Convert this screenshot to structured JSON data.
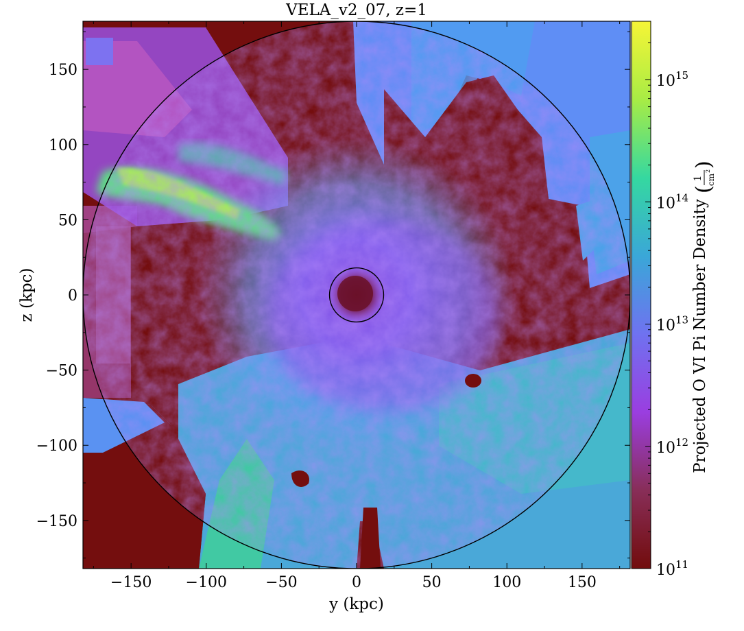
{
  "chart_data": {
    "type": "heatmap",
    "title": "VELA_v2_07, z=1",
    "xlabel": "y  (kpc)",
    "ylabel": "z  (kpc)",
    "xlim": [
      -182,
      182
    ],
    "ylim": [
      -182,
      182
    ],
    "xticks": [
      -150,
      -100,
      -50,
      0,
      50,
      100,
      150
    ],
    "yticks": [
      150,
      100,
      50,
      0,
      -50,
      -100,
      -150
    ],
    "xtick_labels": [
      "−150",
      "−100",
      "−50",
      "0",
      "50",
      "100",
      "150"
    ],
    "ytick_labels": [
      "150",
      "100",
      "50",
      "0",
      "−50",
      "−100",
      "−150"
    ],
    "circles": [
      {
        "name": "outer-virial-circle",
        "center": [
          0,
          0
        ],
        "radius": 182
      },
      {
        "name": "inner-galaxy-circle",
        "center": [
          0,
          0
        ],
        "radius": 18
      }
    ],
    "colorbar": {
      "label_main": "Projected O VI Pi Number Density",
      "label_unit_num": "1",
      "label_unit_den": "cm",
      "label_unit_exp": "2",
      "scale": "log",
      "range": [
        100000000000.0,
        3000000000000000.0
      ],
      "ticks": [
        {
          "value": 100000000000.0,
          "base": "10",
          "exp": "11"
        },
        {
          "value": 1000000000000.0,
          "base": "10",
          "exp": "12"
        },
        {
          "value": 10000000000000.0,
          "base": "10",
          "exp": "13"
        },
        {
          "value": 100000000000000.0,
          "base": "10",
          "exp": "14"
        },
        {
          "value": 1000000000000000.0,
          "base": "10",
          "exp": "15"
        }
      ],
      "colormap": [
        "#720c0c",
        "#882e58",
        "#9a3ee0",
        "#6f72f0",
        "#3aa7d8",
        "#35d8a0",
        "#a8ec45",
        "#f6f536"
      ]
    },
    "grid": false,
    "legend": "none",
    "colors": {
      "background_low": "#740e0e",
      "halo_purple": "#8c55f0",
      "halo_blue": "#5f8ef5",
      "halo_cyan": "#4cc0c8",
      "filament_green": "#78e878",
      "center_dark": "#801838"
    }
  }
}
